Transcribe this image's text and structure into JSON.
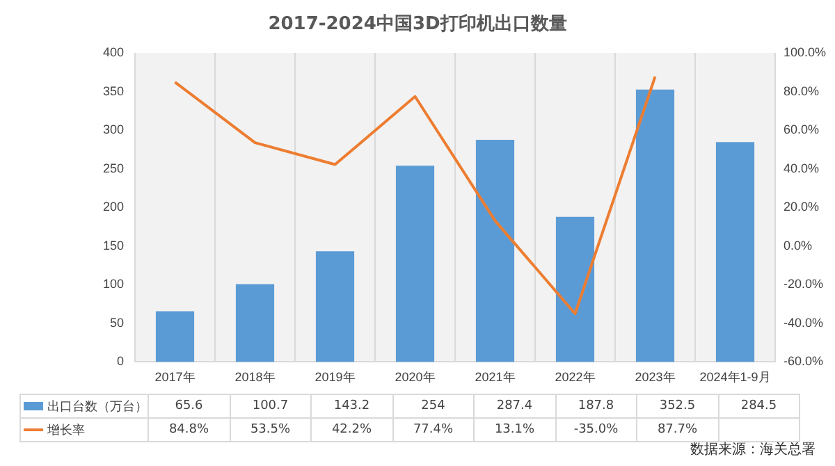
{
  "chart_data": {
    "type": "bar",
    "title": "2017-2024中国3D打印机出口数量",
    "categories": [
      "2017年",
      "2018年",
      "2019年",
      "2020年",
      "2021年",
      "2022年",
      "2023年",
      "2024年1-9月"
    ],
    "series": [
      {
        "name": "出口台数（万台）",
        "color": "#5b9bd5",
        "values": [
          65.6,
          100.7,
          143.2,
          254,
          287.4,
          187.8,
          352.5,
          284.5
        ],
        "value_labels": [
          "65.6",
          "100.7",
          "143.2",
          "254",
          "287.4",
          "187.8",
          "352.5",
          "284.5"
        ]
      },
      {
        "name": "增长率",
        "type": "line",
        "axis": "y2",
        "color": "#ed7d31",
        "values": [
          84.8,
          53.5,
          42.2,
          77.4,
          13.1,
          -35.0,
          87.7,
          null
        ],
        "value_labels": [
          "84.8%",
          "53.5%",
          "42.2%",
          "77.4%",
          "13.1%",
          "-35.0%",
          "87.7%",
          null
        ]
      }
    ],
    "ylim": [
      0,
      400
    ],
    "yticks": [
      0,
      50,
      100,
      150,
      200,
      250,
      300,
      350,
      400
    ],
    "y2lim": [
      -60,
      100
    ],
    "y2ticks": [
      {
        "value": -60,
        "label": "-60.0%"
      },
      {
        "value": -40,
        "label": "-40.0%"
      },
      {
        "value": -20,
        "label": "-20.0%"
      },
      {
        "value": 0,
        "label": "0.0%"
      },
      {
        "value": 20,
        "label": "20.0%"
      },
      {
        "value": 40,
        "label": "40.0%"
      },
      {
        "value": 60,
        "label": "60.0%"
      },
      {
        "value": 80,
        "label": "80.0%"
      },
      {
        "value": 100,
        "label": "100.0%"
      }
    ],
    "grid": "x",
    "legend": "bottom",
    "marker": "none",
    "annotations": [
      "数据来源：海关总署"
    ]
  }
}
